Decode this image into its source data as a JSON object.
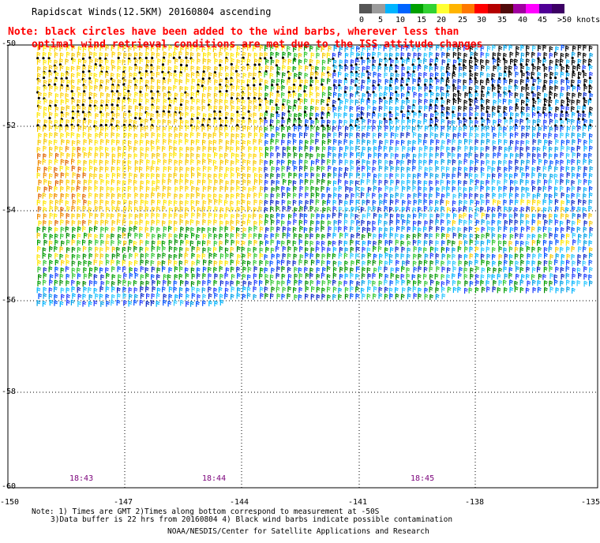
{
  "title": "Rapidscat Winds(12.5KM) 20160804 ascending",
  "note_lines": [
    "Note: black circles have been added to the wind barbs, wherever less than",
    "optimal wind retrieval conditions are met due to the ISS attitude changes"
  ],
  "scale": {
    "labels": [
      "0",
      "5",
      "10",
      "15",
      "20",
      "25",
      "30",
      "35",
      "40",
      "45",
      ">50 knots"
    ],
    "colors": [
      "#555555",
      "#9b9b9b",
      "#00b4ff",
      "#0064ff",
      "#00a000",
      "#32d232",
      "#ffff32",
      "#ffb400",
      "#ff7800",
      "#ff0000",
      "#b40000",
      "#500a0a",
      "#a000a0",
      "#ff00ff",
      "#500096",
      "#3c0064"
    ]
  },
  "lat_labels": [
    "-50",
    "-52",
    "-54",
    "-56",
    "-58",
    "-60"
  ],
  "lon_labels": [
    "-150",
    "-147",
    "-144",
    "-141",
    "-138",
    "-135"
  ],
  "times": [
    "18:43",
    "18:44",
    "18:45"
  ],
  "footer": {
    "line1": "Note: 1) Times are GMT 2)Times along bottom correspond to measurement at -50S",
    "line2": "3)Data buffer is 22 hrs from 20160804 4) Black wind barbs indicate possible contamination",
    "credit": "NOAA/NESDIS/Center for Satellite Applications and Research"
  }
}
